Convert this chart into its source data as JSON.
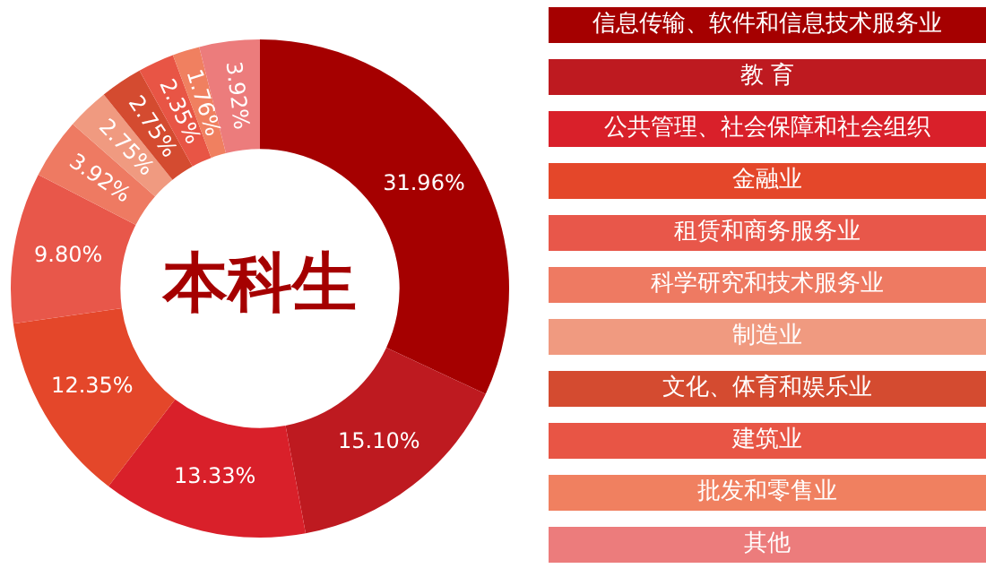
{
  "chart_data": {
    "type": "donut",
    "title": "本科生",
    "categories": [
      "信息传输、软件和信息技术服务业",
      "教 育",
      "公共管理、社会保障和社会组织",
      "金融业",
      "租赁和商务服务业",
      "科学研究和技术服务业",
      "制造业",
      "文化、体育和娱乐业",
      "建筑业",
      "批发和零售业",
      "其他"
    ],
    "values": [
      31.96,
      15.1,
      13.33,
      12.35,
      9.8,
      3.92,
      2.75,
      2.75,
      2.35,
      1.76,
      3.92
    ],
    "value_labels": [
      "31.96%",
      "15.10%",
      "13.33%",
      "12.35%",
      "9.80%",
      "3.92%",
      "2.75%",
      "2.75%",
      "2.35%",
      "1.76%",
      "3.92%"
    ],
    "colors": [
      "#a50000",
      "#be1a20",
      "#d9202a",
      "#e4472a",
      "#e8574a",
      "#ee7a62",
      "#f09a80",
      "#d44b30",
      "#e85545",
      "#f08060",
      "#ec7c7c"
    ],
    "legend": "right"
  }
}
